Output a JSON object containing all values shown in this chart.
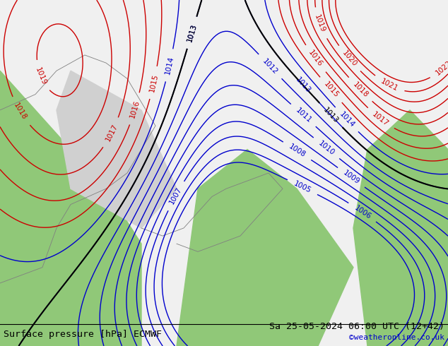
{
  "title_left": "Surface pressure [hPa] ECMWF",
  "title_right": "Sa 25-05-2024 06:00 UTC (12+42)",
  "watermark": "©weatheronline.co.uk",
  "bg_color": "#f0f0f0",
  "land_green_color": "#90c878",
  "land_gray_color": "#d0d0d0",
  "contour_blue_color": "#0000cc",
  "contour_red_color": "#cc0000",
  "contour_black_color": "#000000",
  "label_fontsize": 7.5,
  "title_fontsize": 9.5,
  "watermark_color": "#0000cc",
  "figsize": [
    6.34,
    4.9
  ],
  "dpi": 100
}
